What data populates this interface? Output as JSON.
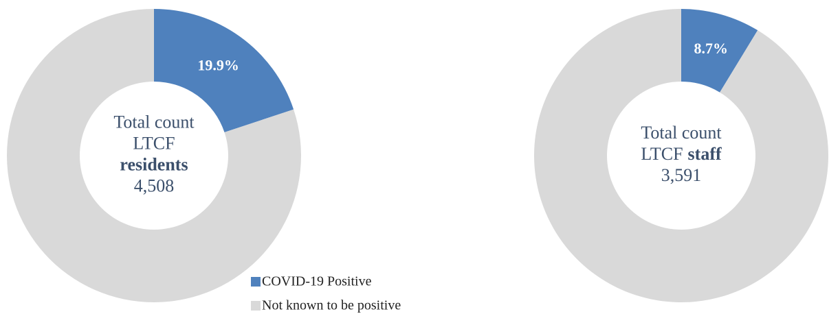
{
  "chart_data": [
    {
      "type": "donut",
      "categories": [
        "COVID-19 Positive",
        "Not known to be positive"
      ],
      "values": [
        19.9,
        80.1
      ],
      "value_labels": [
        "19.9%",
        null
      ],
      "colors": [
        "#4f81bd",
        "#d9d9d9"
      ],
      "center_text": [
        [
          {
            "text": "Total count",
            "bold": false
          }
        ],
        [
          {
            "text": "LTCF",
            "bold": false
          }
        ],
        [
          {
            "text": "residents",
            "bold": true
          }
        ],
        [
          {
            "text": "4,508",
            "bold": false
          }
        ]
      ],
      "legend": true
    },
    {
      "type": "donut",
      "categories": [
        "COVID-19 Positive",
        "Not known to be positive"
      ],
      "values": [
        8.7,
        91.3
      ],
      "value_labels": [
        "8.7%",
        null
      ],
      "colors": [
        "#4f81bd",
        "#d9d9d9"
      ],
      "center_text": [
        [
          {
            "text": "Total count",
            "bold": false
          }
        ],
        [
          {
            "text": "LTCF",
            "bold": false
          },
          {
            "text": "staff",
            "bold": true
          }
        ],
        [
          {
            "text": "3,591",
            "bold": false
          }
        ]
      ],
      "legend": false
    }
  ]
}
